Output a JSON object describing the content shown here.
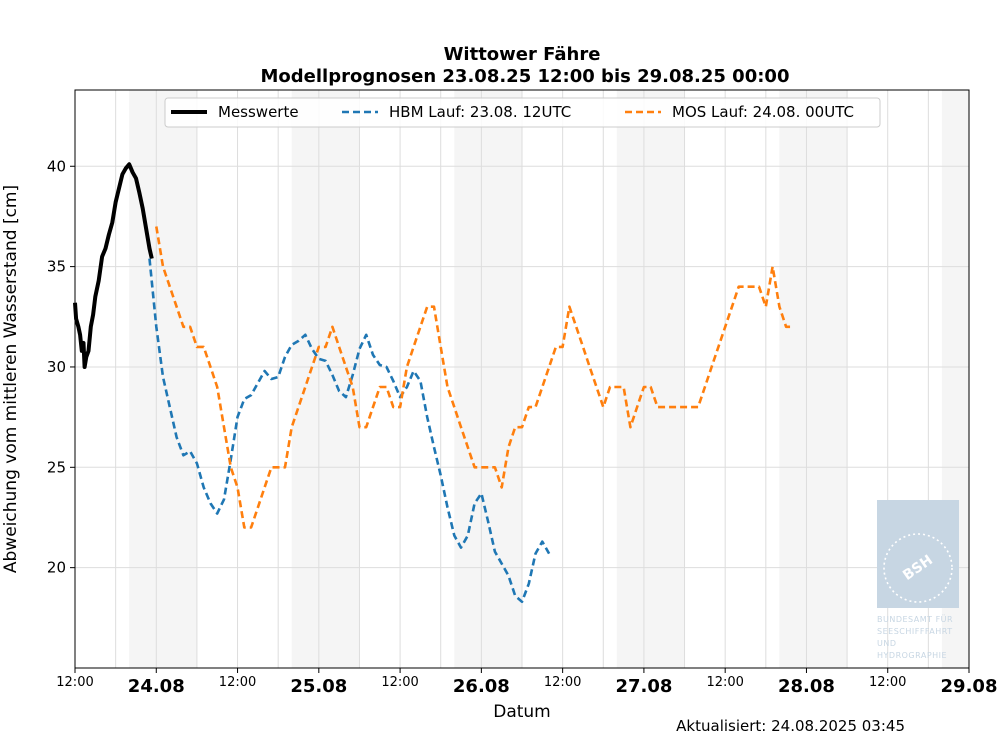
{
  "chart_data": {
    "type": "line",
    "title": "Wittower Fähre",
    "subtitle": "Modellprognosen 23.08.25 12:00 bis 29.08.25 00:00",
    "xlabel": "Datum",
    "ylabel": "Abweichung vom mittleren Wasserstand [cm]",
    "xlim": [
      "2025-08-23 12:00",
      "2025-08-29 00:00"
    ],
    "ylim": [
      15,
      43.8
    ],
    "y_ticks": [
      20,
      25,
      30,
      35,
      40
    ],
    "x_ticks": [
      {
        "t": "2025-08-23 12:00",
        "label": "12:00",
        "style": "small"
      },
      {
        "t": "2025-08-24 00:00",
        "label": "24.08",
        "style": "bold"
      },
      {
        "t": "2025-08-24 12:00",
        "label": "12:00",
        "style": "small"
      },
      {
        "t": "2025-08-25 00:00",
        "label": "25.08",
        "style": "bold"
      },
      {
        "t": "2025-08-25 12:00",
        "label": "12:00",
        "style": "small"
      },
      {
        "t": "2025-08-26 00:00",
        "label": "26.08",
        "style": "bold"
      },
      {
        "t": "2025-08-26 12:00",
        "label": "12:00",
        "style": "small"
      },
      {
        "t": "2025-08-27 00:00",
        "label": "27.08",
        "style": "bold"
      },
      {
        "t": "2025-08-27 12:00",
        "label": "12:00",
        "style": "small"
      },
      {
        "t": "2025-08-28 00:00",
        "label": "28.08",
        "style": "bold"
      },
      {
        "t": "2025-08-28 12:00",
        "label": "12:00",
        "style": "small"
      },
      {
        "t": "2025-08-29 00:00",
        "label": "29.08",
        "style": "bold"
      }
    ],
    "grid": true,
    "legend_position": "top",
    "night_bands": [
      [
        "2025-08-23 20:00",
        "2025-08-24 06:00"
      ],
      [
        "2025-08-24 20:00",
        "2025-08-25 06:00"
      ],
      [
        "2025-08-25 20:00",
        "2025-08-26 06:00"
      ],
      [
        "2025-08-26 20:00",
        "2025-08-27 06:00"
      ],
      [
        "2025-08-27 20:00",
        "2025-08-28 06:00"
      ],
      [
        "2025-08-28 20:00",
        "2025-08-29 00:00"
      ]
    ],
    "series": [
      {
        "name": "Messwerte",
        "color": "#000000",
        "style": "solid",
        "points": [
          [
            "2025-08-23 12:00",
            33.2
          ],
          [
            "2025-08-23 12:10",
            32.4
          ],
          [
            "2025-08-23 12:30",
            32.0
          ],
          [
            "2025-08-23 12:45",
            31.6
          ],
          [
            "2025-08-23 13:00",
            30.8
          ],
          [
            "2025-08-23 13:15",
            31.2
          ],
          [
            "2025-08-23 13:25",
            30.0
          ],
          [
            "2025-08-23 13:40",
            30.5
          ],
          [
            "2025-08-23 14:00",
            30.8
          ],
          [
            "2025-08-23 14:20",
            32.0
          ],
          [
            "2025-08-23 14:40",
            32.6
          ],
          [
            "2025-08-23 15:00",
            33.5
          ],
          [
            "2025-08-23 15:30",
            34.3
          ],
          [
            "2025-08-23 16:00",
            35.5
          ],
          [
            "2025-08-23 16:30",
            35.9
          ],
          [
            "2025-08-23 17:00",
            36.6
          ],
          [
            "2025-08-23 17:30",
            37.2
          ],
          [
            "2025-08-23 18:00",
            38.2
          ],
          [
            "2025-08-23 18:30",
            38.9
          ],
          [
            "2025-08-23 19:00",
            39.6
          ],
          [
            "2025-08-23 19:30",
            39.9
          ],
          [
            "2025-08-23 20:00",
            40.1
          ],
          [
            "2025-08-23 20:30",
            39.7
          ],
          [
            "2025-08-23 21:00",
            39.4
          ],
          [
            "2025-08-23 21:30",
            38.7
          ],
          [
            "2025-08-23 22:00",
            37.9
          ],
          [
            "2025-08-23 22:30",
            36.9
          ],
          [
            "2025-08-23 23:00",
            35.9
          ],
          [
            "2025-08-23 23:20",
            35.4
          ]
        ]
      },
      {
        "name": "HBM Lauf: 23.08. 12UTC",
        "color": "#1f77b4",
        "style": "dashed",
        "points": [
          [
            "2025-08-23 23:00",
            35.4
          ],
          [
            "2025-08-24 00:00",
            32.0
          ],
          [
            "2025-08-24 01:00",
            29.5
          ],
          [
            "2025-08-24 02:00",
            28.0
          ],
          [
            "2025-08-24 03:00",
            26.5
          ],
          [
            "2025-08-24 04:00",
            25.6
          ],
          [
            "2025-08-24 05:00",
            25.8
          ],
          [
            "2025-08-24 06:00",
            25.2
          ],
          [
            "2025-08-24 07:00",
            24.0
          ],
          [
            "2025-08-24 08:00",
            23.2
          ],
          [
            "2025-08-24 09:00",
            22.7
          ],
          [
            "2025-08-24 10:00",
            23.4
          ],
          [
            "2025-08-24 11:00",
            25.4
          ],
          [
            "2025-08-24 12:00",
            27.5
          ],
          [
            "2025-08-24 13:00",
            28.4
          ],
          [
            "2025-08-24 14:00",
            28.6
          ],
          [
            "2025-08-24 15:00",
            29.2
          ],
          [
            "2025-08-24 16:00",
            29.8
          ],
          [
            "2025-08-24 17:00",
            29.4
          ],
          [
            "2025-08-24 18:00",
            29.5
          ],
          [
            "2025-08-24 19:00",
            30.5
          ],
          [
            "2025-08-24 20:00",
            31.1
          ],
          [
            "2025-08-24 21:00",
            31.3
          ],
          [
            "2025-08-24 22:00",
            31.6
          ],
          [
            "2025-08-24 23:00",
            30.9
          ],
          [
            "2025-08-25 00:00",
            30.4
          ],
          [
            "2025-08-25 01:00",
            30.3
          ],
          [
            "2025-08-25 02:00",
            29.6
          ],
          [
            "2025-08-25 03:00",
            28.8
          ],
          [
            "2025-08-25 04:00",
            28.5
          ],
          [
            "2025-08-25 05:00",
            29.6
          ],
          [
            "2025-08-25 06:00",
            30.9
          ],
          [
            "2025-08-25 07:00",
            31.6
          ],
          [
            "2025-08-25 08:00",
            30.6
          ],
          [
            "2025-08-25 09:00",
            30.1
          ],
          [
            "2025-08-25 10:00",
            30.0
          ],
          [
            "2025-08-25 11:00",
            29.3
          ],
          [
            "2025-08-25 12:00",
            28.5
          ],
          [
            "2025-08-25 13:00",
            29.0
          ],
          [
            "2025-08-25 14:00",
            29.8
          ],
          [
            "2025-08-25 15:00",
            29.3
          ],
          [
            "2025-08-25 16:00",
            27.5
          ],
          [
            "2025-08-25 17:00",
            26.0
          ],
          [
            "2025-08-25 18:00",
            24.6
          ],
          [
            "2025-08-25 19:00",
            23.0
          ],
          [
            "2025-08-25 20:00",
            21.6
          ],
          [
            "2025-08-25 21:00",
            21.0
          ],
          [
            "2025-08-25 22:00",
            21.6
          ],
          [
            "2025-08-25 23:00",
            23.2
          ],
          [
            "2025-08-26 00:00",
            23.7
          ],
          [
            "2025-08-26 01:00",
            22.3
          ],
          [
            "2025-08-26 02:00",
            20.8
          ],
          [
            "2025-08-26 03:00",
            20.2
          ],
          [
            "2025-08-26 04:00",
            19.6
          ],
          [
            "2025-08-26 05:00",
            18.6
          ],
          [
            "2025-08-26 06:00",
            18.3
          ],
          [
            "2025-08-26 07:00",
            19.2
          ],
          [
            "2025-08-26 08:00",
            20.7
          ],
          [
            "2025-08-26 09:00",
            21.3
          ],
          [
            "2025-08-26 10:00",
            20.7
          ]
        ]
      },
      {
        "name": "MOS Lauf: 24.08. 00UTC",
        "color": "#ff7f0e",
        "style": "dashed",
        "points": [
          [
            "2025-08-24 00:00",
            37.0
          ],
          [
            "2025-08-24 01:00",
            35.0
          ],
          [
            "2025-08-24 02:00",
            34.0
          ],
          [
            "2025-08-24 03:00",
            33.0
          ],
          [
            "2025-08-24 04:00",
            32.0
          ],
          [
            "2025-08-24 05:00",
            32.0
          ],
          [
            "2025-08-24 06:00",
            31.0
          ],
          [
            "2025-08-24 07:00",
            31.0
          ],
          [
            "2025-08-24 08:00",
            30.0
          ],
          [
            "2025-08-24 09:00",
            29.0
          ],
          [
            "2025-08-24 10:00",
            27.0
          ],
          [
            "2025-08-24 11:00",
            25.0
          ],
          [
            "2025-08-24 12:00",
            24.0
          ],
          [
            "2025-08-24 13:00",
            22.0
          ],
          [
            "2025-08-24 14:00",
            22.0
          ],
          [
            "2025-08-24 15:00",
            23.0
          ],
          [
            "2025-08-24 16:00",
            24.0
          ],
          [
            "2025-08-24 17:00",
            25.0
          ],
          [
            "2025-08-24 18:00",
            25.0
          ],
          [
            "2025-08-24 19:00",
            25.0
          ],
          [
            "2025-08-24 20:00",
            27.0
          ],
          [
            "2025-08-24 21:00",
            28.0
          ],
          [
            "2025-08-24 22:00",
            29.0
          ],
          [
            "2025-08-24 23:00",
            30.0
          ],
          [
            "2025-08-25 00:00",
            31.0
          ],
          [
            "2025-08-25 01:00",
            31.0
          ],
          [
            "2025-08-25 02:00",
            32.0
          ],
          [
            "2025-08-25 03:00",
            31.0
          ],
          [
            "2025-08-25 04:00",
            30.0
          ],
          [
            "2025-08-25 05:00",
            29.0
          ],
          [
            "2025-08-25 06:00",
            27.0
          ],
          [
            "2025-08-25 07:00",
            27.0
          ],
          [
            "2025-08-25 08:00",
            28.0
          ],
          [
            "2025-08-25 09:00",
            29.0
          ],
          [
            "2025-08-25 10:00",
            29.0
          ],
          [
            "2025-08-25 11:00",
            28.0
          ],
          [
            "2025-08-25 12:00",
            28.0
          ],
          [
            "2025-08-25 13:00",
            30.0
          ],
          [
            "2025-08-25 14:00",
            31.0
          ],
          [
            "2025-08-25 15:00",
            32.0
          ],
          [
            "2025-08-25 16:00",
            33.0
          ],
          [
            "2025-08-25 17:00",
            33.0
          ],
          [
            "2025-08-25 18:00",
            31.0
          ],
          [
            "2025-08-25 19:00",
            29.0
          ],
          [
            "2025-08-25 20:00",
            28.0
          ],
          [
            "2025-08-25 21:00",
            27.0
          ],
          [
            "2025-08-25 22:00",
            26.0
          ],
          [
            "2025-08-25 23:00",
            25.0
          ],
          [
            "2025-08-26 00:00",
            25.0
          ],
          [
            "2025-08-26 01:00",
            25.0
          ],
          [
            "2025-08-26 02:00",
            25.0
          ],
          [
            "2025-08-26 03:00",
            24.0
          ],
          [
            "2025-08-26 04:00",
            26.0
          ],
          [
            "2025-08-26 05:00",
            27.0
          ],
          [
            "2025-08-26 06:00",
            27.0
          ],
          [
            "2025-08-26 07:00",
            28.0
          ],
          [
            "2025-08-26 08:00",
            28.0
          ],
          [
            "2025-08-26 09:00",
            29.0
          ],
          [
            "2025-08-26 10:00",
            30.0
          ],
          [
            "2025-08-26 11:00",
            31.0
          ],
          [
            "2025-08-26 12:00",
            31.0
          ],
          [
            "2025-08-26 13:00",
            33.0
          ],
          [
            "2025-08-26 14:00",
            32.0
          ],
          [
            "2025-08-26 15:00",
            31.0
          ],
          [
            "2025-08-26 16:00",
            30.0
          ],
          [
            "2025-08-26 17:00",
            29.0
          ],
          [
            "2025-08-26 18:00",
            28.0
          ],
          [
            "2025-08-26 19:00",
            29.0
          ],
          [
            "2025-08-26 20:00",
            29.0
          ],
          [
            "2025-08-26 21:00",
            29.0
          ],
          [
            "2025-08-26 22:00",
            27.0
          ],
          [
            "2025-08-26 23:00",
            28.0
          ],
          [
            "2025-08-27 00:00",
            29.0
          ],
          [
            "2025-08-27 01:00",
            29.0
          ],
          [
            "2025-08-27 02:00",
            28.0
          ],
          [
            "2025-08-27 03:00",
            28.0
          ],
          [
            "2025-08-27 04:00",
            28.0
          ],
          [
            "2025-08-27 05:00",
            28.0
          ],
          [
            "2025-08-27 06:00",
            28.0
          ],
          [
            "2025-08-27 07:00",
            28.0
          ],
          [
            "2025-08-27 08:00",
            28.0
          ],
          [
            "2025-08-27 09:00",
            29.0
          ],
          [
            "2025-08-27 10:00",
            30.0
          ],
          [
            "2025-08-27 11:00",
            31.0
          ],
          [
            "2025-08-27 12:00",
            32.0
          ],
          [
            "2025-08-27 13:00",
            33.0
          ],
          [
            "2025-08-27 14:00",
            34.0
          ],
          [
            "2025-08-27 15:00",
            34.0
          ],
          [
            "2025-08-27 16:00",
            34.0
          ],
          [
            "2025-08-27 17:00",
            34.0
          ],
          [
            "2025-08-27 18:00",
            33.0
          ],
          [
            "2025-08-27 19:00",
            35.0
          ],
          [
            "2025-08-27 20:00",
            33.0
          ],
          [
            "2025-08-27 21:00",
            32.0
          ],
          [
            "2025-08-27 22:00",
            32.0
          ]
        ]
      }
    ]
  },
  "footer": {
    "updated": "Aktualisiert: 24.08.2025 03:45"
  },
  "logo": {
    "name": "BSH",
    "line1": "BUNDESAMT FÜR",
    "line2": "SEESCHIFFFAHRT",
    "line3": "UND",
    "line4": "HYDROGRAPHIE"
  },
  "colors": {
    "night_band": "#f5f5f5",
    "grid": "#dddddd",
    "logo": "#c7d6e3"
  }
}
